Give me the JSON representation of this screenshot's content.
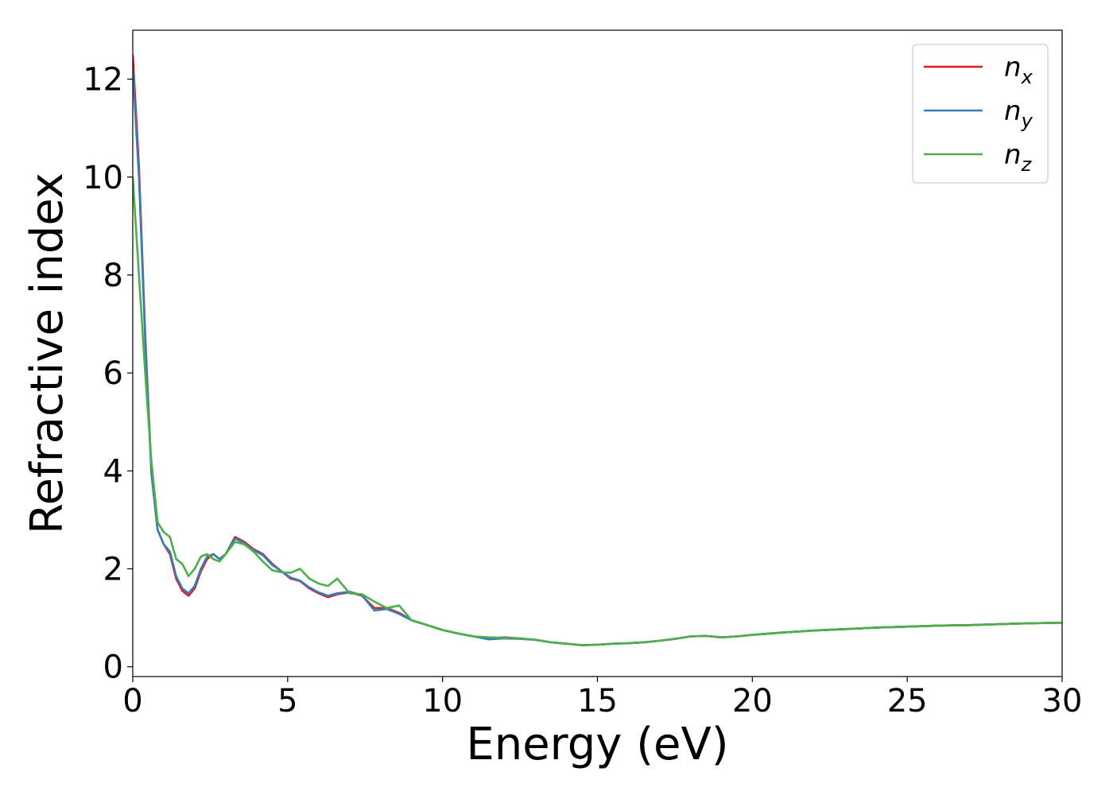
{
  "chart_data": {
    "type": "line",
    "xlabel": "Energy (eV)",
    "ylabel": "Refractive index",
    "xlim": [
      0,
      30
    ],
    "ylim": [
      -0.2,
      13
    ],
    "xticks": [
      0,
      5,
      10,
      15,
      20,
      25,
      30
    ],
    "xtick_labels": [
      "0",
      "5",
      "10",
      "15",
      "20",
      "25",
      "30"
    ],
    "yticks": [
      0,
      2,
      4,
      6,
      8,
      10,
      12
    ],
    "ytick_labels": [
      "0",
      "2",
      "4",
      "6",
      "8",
      "10",
      "12"
    ],
    "grid": false,
    "legend_position": "top-right",
    "series": [
      {
        "name": "n",
        "subscript": "x",
        "color": "#e41a1c",
        "x": [
          0,
          0.2,
          0.4,
          0.6,
          0.8,
          1.0,
          1.2,
          1.4,
          1.6,
          1.8,
          2.0,
          2.2,
          2.4,
          2.6,
          2.8,
          3.0,
          3.3,
          3.6,
          3.9,
          4.2,
          4.5,
          4.8,
          5.1,
          5.4,
          5.7,
          6.0,
          6.3,
          6.6,
          7.0,
          7.4,
          7.8,
          8.2,
          8.6,
          9.0,
          9.5,
          10.0,
          10.5,
          11.0,
          11.5,
          12.0,
          12.5,
          13.0,
          13.5,
          14.0,
          14.5,
          15.0,
          15.5,
          16.0,
          16.5,
          17.0,
          17.5,
          18.0,
          18.5,
          19.0,
          19.5,
          20.0,
          21.0,
          22.0,
          23.0,
          24.0,
          25.0,
          26.0,
          27.0,
          28.0,
          29.0,
          30.0
        ],
        "y": [
          12.5,
          10.2,
          6.8,
          4.0,
          2.8,
          2.5,
          2.3,
          1.8,
          1.55,
          1.45,
          1.6,
          1.95,
          2.2,
          2.3,
          2.2,
          2.3,
          2.65,
          2.55,
          2.4,
          2.3,
          2.1,
          1.95,
          1.8,
          1.75,
          1.6,
          1.5,
          1.42,
          1.48,
          1.52,
          1.45,
          1.2,
          1.2,
          1.1,
          0.95,
          0.85,
          0.75,
          0.68,
          0.62,
          0.58,
          0.6,
          0.58,
          0.55,
          0.5,
          0.47,
          0.44,
          0.45,
          0.47,
          0.48,
          0.5,
          0.53,
          0.57,
          0.62,
          0.63,
          0.6,
          0.62,
          0.65,
          0.7,
          0.74,
          0.77,
          0.8,
          0.82,
          0.84,
          0.85,
          0.87,
          0.89,
          0.9
        ]
      },
      {
        "name": "n",
        "subscript": "y",
        "color": "#377eb8",
        "x": [
          0,
          0.2,
          0.4,
          0.6,
          0.8,
          1.0,
          1.2,
          1.4,
          1.6,
          1.8,
          2.0,
          2.2,
          2.4,
          2.6,
          2.8,
          3.0,
          3.3,
          3.6,
          3.9,
          4.2,
          4.5,
          4.8,
          5.1,
          5.4,
          5.7,
          6.0,
          6.3,
          6.6,
          7.0,
          7.4,
          7.8,
          8.2,
          8.6,
          9.0,
          9.5,
          10.0,
          10.5,
          11.0,
          11.5,
          12.0,
          12.5,
          13.0,
          13.5,
          14.0,
          14.5,
          15.0,
          15.5,
          16.0,
          16.5,
          17.0,
          17.5,
          18.0,
          18.5,
          19.0,
          19.5,
          20.0,
          21.0,
          22.0,
          23.0,
          24.0,
          25.0,
          26.0,
          27.0,
          28.0,
          29.0,
          30.0
        ],
        "y": [
          12.2,
          10.0,
          6.7,
          3.95,
          2.8,
          2.5,
          2.35,
          1.85,
          1.6,
          1.5,
          1.65,
          2.0,
          2.25,
          2.3,
          2.2,
          2.3,
          2.62,
          2.52,
          2.38,
          2.28,
          2.08,
          1.95,
          1.82,
          1.76,
          1.62,
          1.52,
          1.45,
          1.5,
          1.53,
          1.46,
          1.15,
          1.18,
          1.08,
          0.95,
          0.85,
          0.75,
          0.68,
          0.62,
          0.56,
          0.58,
          0.57,
          0.55,
          0.5,
          0.47,
          0.44,
          0.45,
          0.47,
          0.48,
          0.5,
          0.53,
          0.57,
          0.62,
          0.63,
          0.6,
          0.62,
          0.65,
          0.7,
          0.74,
          0.77,
          0.8,
          0.82,
          0.84,
          0.85,
          0.87,
          0.89,
          0.9
        ]
      },
      {
        "name": "n",
        "subscript": "z",
        "color": "#4daf4a",
        "x": [
          0,
          0.2,
          0.4,
          0.6,
          0.8,
          1.0,
          1.2,
          1.4,
          1.6,
          1.8,
          2.0,
          2.2,
          2.4,
          2.6,
          2.8,
          3.0,
          3.3,
          3.6,
          3.9,
          4.2,
          4.5,
          4.8,
          5.1,
          5.4,
          5.7,
          6.0,
          6.3,
          6.6,
          7.0,
          7.4,
          7.8,
          8.2,
          8.6,
          9.0,
          9.5,
          10.0,
          10.5,
          11.0,
          11.5,
          12.0,
          12.5,
          13.0,
          13.5,
          14.0,
          14.5,
          15.0,
          15.5,
          16.0,
          16.5,
          17.0,
          17.5,
          18.0,
          18.5,
          19.0,
          19.5,
          20.0,
          21.0,
          22.0,
          23.0,
          24.0,
          25.0,
          26.0,
          27.0,
          28.0,
          29.0,
          30.0
        ],
        "y": [
          10.0,
          8.0,
          6.0,
          4.2,
          2.95,
          2.75,
          2.65,
          2.2,
          2.1,
          1.85,
          2.0,
          2.25,
          2.3,
          2.2,
          2.15,
          2.3,
          2.55,
          2.5,
          2.35,
          2.15,
          1.97,
          1.93,
          1.92,
          2.0,
          1.8,
          1.7,
          1.65,
          1.8,
          1.5,
          1.48,
          1.33,
          1.2,
          1.25,
          0.95,
          0.85,
          0.75,
          0.68,
          0.62,
          0.6,
          0.59,
          0.58,
          0.55,
          0.5,
          0.47,
          0.44,
          0.45,
          0.47,
          0.48,
          0.5,
          0.53,
          0.57,
          0.62,
          0.63,
          0.6,
          0.62,
          0.65,
          0.7,
          0.74,
          0.77,
          0.8,
          0.82,
          0.84,
          0.85,
          0.87,
          0.89,
          0.9
        ]
      }
    ]
  }
}
